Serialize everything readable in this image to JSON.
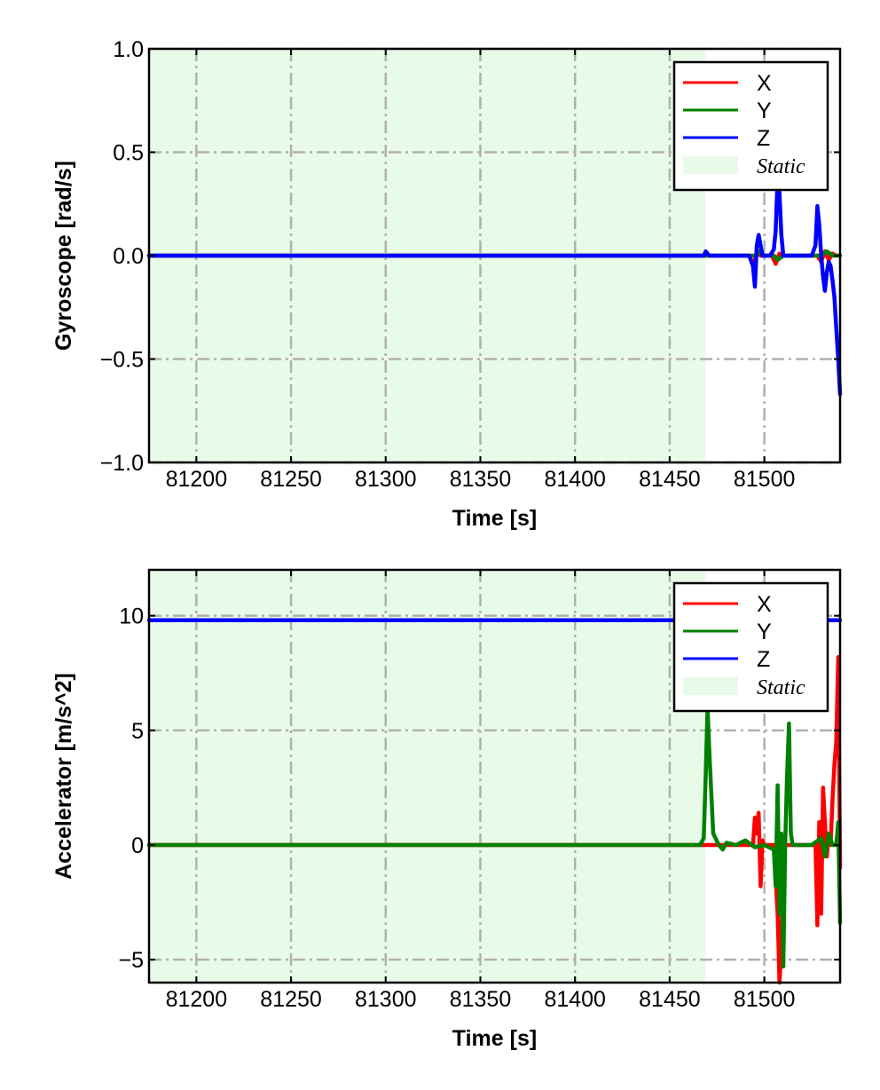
{
  "chart_data": [
    {
      "type": "line",
      "id": "gyro",
      "xlabel": "Time [s]",
      "ylabel": "Gyroscope [rad/s]",
      "xlim": [
        81175,
        81540
      ],
      "ylim": [
        -1.0,
        1.0
      ],
      "xticks": [
        81200,
        81250,
        81300,
        81350,
        81400,
        81450,
        81500
      ],
      "xtick_labels": [
        "81200",
        "81250",
        "81300",
        "81350",
        "81400",
        "81450",
        "81500"
      ],
      "yticks": [
        -1.0,
        -0.5,
        0.0,
        0.5,
        1.0
      ],
      "ytick_labels": [
        "−1.0",
        "−0.5",
        "0.0",
        "0.5",
        "1.0"
      ],
      "grid": true,
      "legend_position": "top-right",
      "static_region": {
        "label": "Static",
        "x_start": 81175,
        "x_end": 81469
      },
      "series": [
        {
          "name": "X",
          "color": "#ff0000",
          "x": [
            81175,
            81469,
            81492,
            81494,
            81496,
            81498,
            81500,
            81504,
            81506,
            81508,
            81510,
            81520,
            81528,
            81530,
            81532,
            81534,
            81536,
            81538,
            81540
          ],
          "y": [
            0.0,
            0.0,
            0.0,
            -0.05,
            0.02,
            0.0,
            0.0,
            0.0,
            -0.04,
            0.01,
            0.0,
            0.0,
            0.0,
            -0.03,
            0.02,
            -0.02,
            0.01,
            0.0,
            0.0
          ]
        },
        {
          "name": "Y",
          "color": "#008000",
          "x": [
            81175,
            81469,
            81495,
            81497,
            81500,
            81505,
            81507,
            81510,
            81520,
            81530,
            81533,
            81536,
            81540
          ],
          "y": [
            0.0,
            0.0,
            0.0,
            0.02,
            0.0,
            0.0,
            -0.02,
            0.0,
            0.0,
            0.0,
            0.02,
            0.0,
            0.0
          ]
        },
        {
          "name": "Z",
          "color": "#0000ff",
          "x": [
            81175,
            81468,
            81469,
            81470,
            81471,
            81492,
            81494,
            81495,
            81496,
            81497,
            81499,
            81503,
            81505,
            81506,
            81507,
            81508,
            81509,
            81510,
            81512,
            81515,
            81520,
            81525,
            81527,
            81528,
            81529,
            81530,
            81531,
            81532,
            81533,
            81534,
            81535,
            81536,
            81537,
            81538,
            81539,
            81540
          ],
          "y": [
            0.0,
            0.0,
            0.02,
            0.01,
            0.0,
            0.0,
            -0.05,
            -0.15,
            0.05,
            0.1,
            0.0,
            0.0,
            0.03,
            0.12,
            0.38,
            0.3,
            0.1,
            0.0,
            0.0,
            0.0,
            0.0,
            0.0,
            0.05,
            0.24,
            0.15,
            0.0,
            -0.1,
            -0.17,
            -0.08,
            -0.03,
            -0.05,
            -0.12,
            -0.2,
            -0.35,
            -0.5,
            -0.67
          ]
        }
      ]
    },
    {
      "type": "line",
      "id": "accel",
      "xlabel": "Time [s]",
      "ylabel": "Accelerator [m/s^2]",
      "xlim": [
        81175,
        81540
      ],
      "ylim": [
        -6.0,
        12.0
      ],
      "xticks": [
        81200,
        81250,
        81300,
        81350,
        81400,
        81450,
        81500
      ],
      "xtick_labels": [
        "81200",
        "81250",
        "81300",
        "81350",
        "81400",
        "81450",
        "81500"
      ],
      "yticks": [
        -5,
        0,
        5,
        10
      ],
      "ytick_labels": [
        "−5",
        "0",
        "5",
        "10"
      ],
      "grid": true,
      "legend_position": "top-right",
      "static_region": {
        "label": "Static",
        "x_start": 81175,
        "x_end": 81469
      },
      "series": [
        {
          "name": "X",
          "color": "#ff0000",
          "x": [
            81175,
            81468,
            81494,
            81495,
            81496,
            81497,
            81498,
            81499,
            81500,
            81505,
            81507,
            81508,
            81509,
            81510,
            81512,
            81520,
            81527,
            81528,
            81529,
            81530,
            81531,
            81532,
            81533,
            81534,
            81535,
            81536,
            81537,
            81538,
            81539,
            81540
          ],
          "y": [
            0.0,
            0.0,
            0.0,
            1.2,
            0.5,
            1.4,
            -1.8,
            0.2,
            0.0,
            0.0,
            -3.0,
            -6.0,
            -4.5,
            0.0,
            0.0,
            0.0,
            0.0,
            -3.5,
            1.0,
            -3.0,
            2.5,
            1.0,
            -0.5,
            0.5,
            0.0,
            2.0,
            3.5,
            4.5,
            8.2,
            -1.0
          ]
        },
        {
          "name": "Y",
          "color": "#008000",
          "x": [
            81175,
            81466,
            81468,
            81469,
            81470,
            81471,
            81473,
            81476,
            81478,
            81480,
            81485,
            81490,
            81495,
            81500,
            81505,
            81506,
            81507,
            81508,
            81509,
            81510,
            81511,
            81512,
            81513,
            81514,
            81515,
            81520,
            81525,
            81530,
            81532,
            81534,
            81536,
            81538,
            81539,
            81540
          ],
          "y": [
            0.0,
            0.0,
            0.3,
            3.0,
            6.0,
            4.0,
            0.5,
            0.0,
            -0.2,
            0.1,
            0.0,
            0.2,
            -0.1,
            0.0,
            -0.2,
            -1.8,
            2.6,
            -3.0,
            0.5,
            -5.3,
            0.0,
            3.0,
            5.3,
            0.5,
            0.0,
            0.0,
            0.0,
            0.3,
            -0.5,
            0.5,
            0.0,
            0.0,
            1.0,
            -3.4
          ]
        },
        {
          "name": "Z",
          "color": "#0000ff",
          "x": [
            81175,
            81540
          ],
          "y": [
            9.8,
            9.8
          ]
        }
      ]
    }
  ]
}
